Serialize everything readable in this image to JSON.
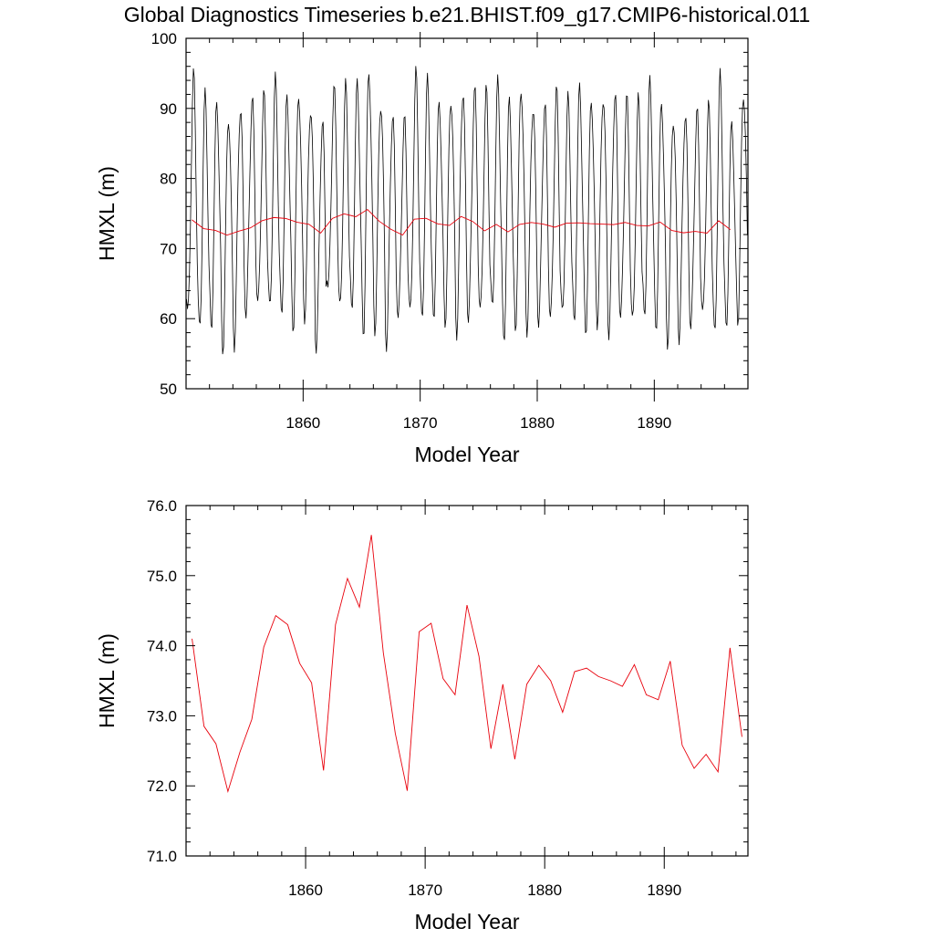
{
  "title": "Global Diagnostics Timeseries b.e21.BHIST.f09_g17.CMIP6-historical.011",
  "colors": {
    "monthly": "#000000",
    "annual": "#e8000b",
    "axes": "#000000"
  },
  "chart_data": [
    {
      "type": "line",
      "xlabel": "Model Year",
      "ylabel": "HMXL (m)",
      "xlim": [
        1850.0,
        1898.0
      ],
      "ylim": [
        50,
        100
      ],
      "xticks": [
        1860,
        1870,
        1880,
        1890
      ],
      "yticks": [
        50,
        60,
        70,
        80,
        90,
        100
      ],
      "ytick_labels": [
        "50",
        "60",
        "70",
        "80",
        "90",
        "100"
      ],
      "grid": false,
      "series": [
        {
          "color": "#000000",
          "x_start": 1850.04,
          "x_step": 0.08333,
          "monthly_annual_maxima": [
            94.0,
            91.3,
            90.8,
            89.4,
            91.1,
            91.5,
            91.4,
            93.4,
            91.4,
            92.6,
            90.8,
            88.5,
            92.4,
            92.5,
            93.2,
            95.7,
            91.6,
            89.7,
            88.4,
            94.2,
            93.5,
            91.1,
            92.1,
            93.1,
            92.8,
            91.9,
            93.1,
            91.3,
            93.6,
            91.1,
            90.7,
            92.0,
            90.7,
            92.8,
            91.8,
            92.6,
            92.6,
            91.2,
            90.5,
            93.4,
            91.1,
            89.4,
            89.8,
            89.6,
            89.7,
            93.9,
            88.1,
            92.9
          ],
          "monthly_annual_minima": [
            59.5,
            57.8,
            58.9,
            56.4,
            57.0,
            60.4,
            61.2,
            60.5,
            60.7,
            59.3,
            60.9,
            55.9,
            63.6,
            60.5,
            60.9,
            58.5,
            59.3,
            56.6,
            59.7,
            59.6,
            59.2,
            60.6,
            60.3,
            58.6,
            59.5,
            60.0,
            60.6,
            57.0,
            59.6,
            59.1,
            59.3,
            59.0,
            59.7,
            59.4,
            58.8,
            60.2,
            58.1,
            59.4,
            58.5,
            59.7,
            59.1,
            57.3,
            57.7,
            58.3,
            59.6,
            57.0,
            59.2,
            60.5
          ]
        },
        {
          "color": "#e8000b",
          "x": [
            1850.5,
            1851.5,
            1852.5,
            1853.5,
            1854.5,
            1855.5,
            1856.5,
            1857.5,
            1858.5,
            1859.5,
            1860.5,
            1861.5,
            1862.5,
            1863.5,
            1864.5,
            1865.5,
            1866.5,
            1867.5,
            1868.5,
            1869.5,
            1870.5,
            1871.5,
            1872.5,
            1873.5,
            1874.5,
            1875.5,
            1876.5,
            1877.5,
            1878.5,
            1879.5,
            1880.5,
            1881.5,
            1882.5,
            1883.5,
            1884.5,
            1885.5,
            1886.5,
            1887.5,
            1888.5,
            1889.5,
            1890.5,
            1891.5,
            1892.5,
            1893.5,
            1894.5,
            1895.5,
            1896.5
          ],
          "y": [
            74.1,
            72.85,
            72.6,
            71.92,
            72.48,
            72.95,
            73.98,
            74.43,
            74.3,
            73.75,
            73.47,
            72.22,
            74.3,
            74.96,
            74.55,
            75.58,
            73.9,
            72.75,
            71.93,
            74.2,
            74.32,
            73.53,
            73.3,
            74.58,
            73.85,
            72.53,
            73.45,
            72.38,
            73.45,
            73.72,
            73.5,
            73.05,
            73.63,
            73.68,
            73.56,
            73.5,
            73.42,
            73.73,
            73.3,
            73.23,
            73.78,
            72.58,
            72.25,
            72.45,
            72.2,
            73.97,
            72.7
          ]
        }
      ]
    },
    {
      "type": "line",
      "xlabel": "Model Year",
      "ylabel": "HMXL (m)",
      "xlim": [
        1850.0,
        1897.0
      ],
      "ylim": [
        71.0,
        76.0
      ],
      "xticks": [
        1860,
        1870,
        1880,
        1890
      ],
      "yticks": [
        71.0,
        72.0,
        73.0,
        74.0,
        75.0,
        76.0
      ],
      "ytick_labels": [
        "71.0",
        "72.0",
        "73.0",
        "74.0",
        "75.0",
        "76.0"
      ],
      "grid": false,
      "series": [
        {
          "color": "#e8000b",
          "x": [
            1850.5,
            1851.5,
            1852.5,
            1853.5,
            1854.5,
            1855.5,
            1856.5,
            1857.5,
            1858.5,
            1859.5,
            1860.5,
            1861.5,
            1862.5,
            1863.5,
            1864.5,
            1865.5,
            1866.5,
            1867.5,
            1868.5,
            1869.5,
            1870.5,
            1871.5,
            1872.5,
            1873.5,
            1874.5,
            1875.5,
            1876.5,
            1877.5,
            1878.5,
            1879.5,
            1880.5,
            1881.5,
            1882.5,
            1883.5,
            1884.5,
            1885.5,
            1886.5,
            1887.5,
            1888.5,
            1889.5,
            1890.5,
            1891.5,
            1892.5,
            1893.5,
            1894.5,
            1895.5,
            1896.5
          ],
          "y": [
            74.1,
            72.85,
            72.6,
            71.92,
            72.48,
            72.95,
            73.98,
            74.43,
            74.3,
            73.75,
            73.47,
            72.22,
            74.3,
            74.96,
            74.55,
            75.58,
            73.9,
            72.75,
            71.93,
            74.2,
            74.32,
            73.53,
            73.3,
            74.58,
            73.85,
            72.53,
            73.45,
            72.38,
            73.45,
            73.72,
            73.5,
            73.05,
            73.63,
            73.68,
            73.56,
            73.5,
            73.42,
            73.73,
            73.3,
            73.23,
            73.78,
            72.58,
            72.25,
            72.45,
            72.2,
            73.97,
            72.7
          ]
        }
      ]
    }
  ]
}
